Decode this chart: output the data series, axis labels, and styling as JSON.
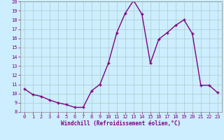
{
  "x": [
    0,
    1,
    2,
    3,
    4,
    5,
    6,
    7,
    8,
    9,
    10,
    11,
    12,
    13,
    14,
    15,
    16,
    17,
    18,
    19,
    20,
    21,
    22,
    23
  ],
  "y": [
    10.5,
    9.9,
    9.7,
    9.3,
    9.0,
    8.8,
    8.5,
    8.5,
    10.3,
    11.0,
    13.3,
    16.6,
    18.7,
    20.1,
    18.6,
    13.3,
    15.9,
    16.6,
    17.4,
    18.0,
    16.5,
    10.9,
    10.9,
    10.1
  ],
  "line_color": "#800080",
  "marker": "+",
  "marker_color": "#800080",
  "bg_color": "#cceeff",
  "grid_color": "#aacccc",
  "xlabel": "Windchill (Refroidissement éolien,°C)",
  "xlabel_color": "#800080",
  "tick_color": "#800080",
  "ylim": [
    8,
    20
  ],
  "xlim": [
    -0.5,
    23.5
  ],
  "yticks": [
    8,
    9,
    10,
    11,
    12,
    13,
    14,
    15,
    16,
    17,
    18,
    19,
    20
  ],
  "xticks": [
    0,
    1,
    2,
    3,
    4,
    5,
    6,
    7,
    8,
    9,
    10,
    11,
    12,
    13,
    14,
    15,
    16,
    17,
    18,
    19,
    20,
    21,
    22,
    23
  ],
  "linewidth": 1.0,
  "markersize": 3.5
}
